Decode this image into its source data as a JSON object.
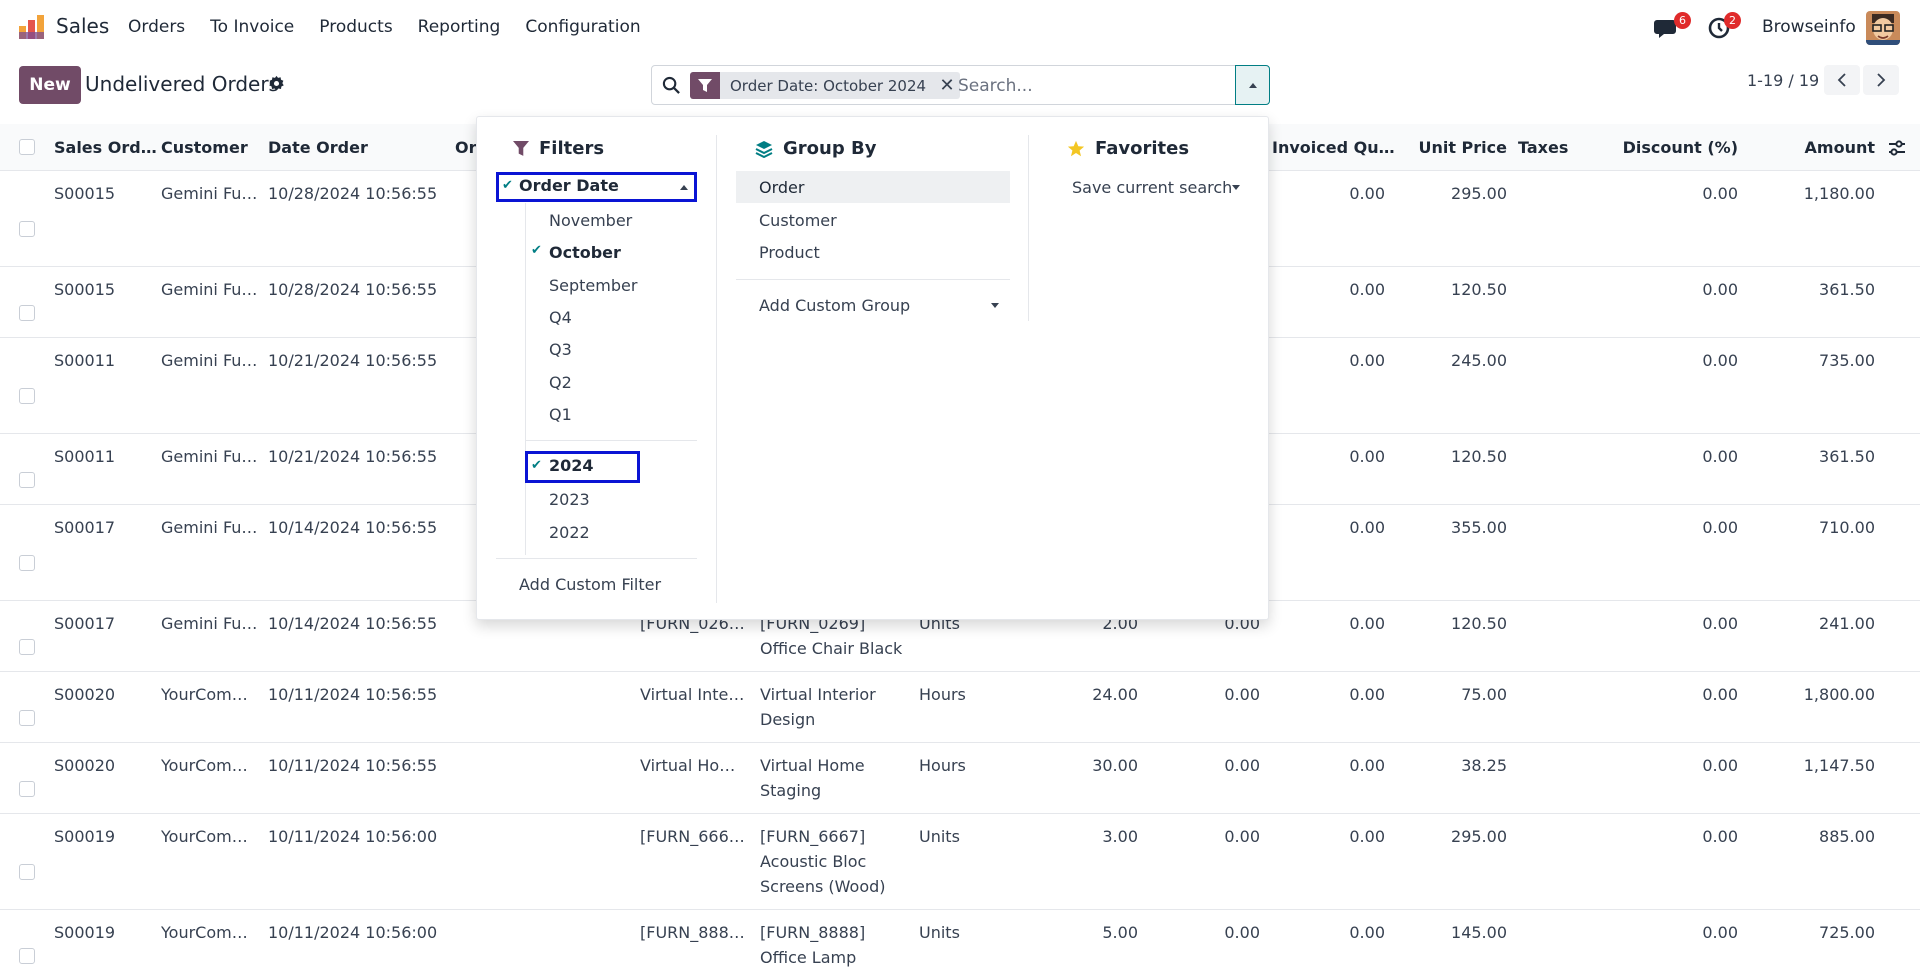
{
  "navbar": {
    "app_name": "Sales",
    "menu": [
      "Orders",
      "To Invoice",
      "Products",
      "Reporting",
      "Configuration"
    ],
    "messages_count": "6",
    "activities_count": "2",
    "company": "Browseinfo",
    "icons": [
      "sales-logo-icon",
      "chat-icon",
      "clock-icon",
      "avatar"
    ]
  },
  "control": {
    "new_label": "New",
    "title": "Undelivered Orders",
    "facet_label": "Order Date: October 2024",
    "search_placeholder": "Search...",
    "pager": "1-19 / 19"
  },
  "table": {
    "headers": {
      "order": "Sales Ord…",
      "customer": "Customer",
      "date": "Date Order",
      "or": "Or",
      "invoiced": "Invoiced Qu…",
      "unit_price": "Unit Price",
      "taxes": "Taxes",
      "discount": "Discount (%)",
      "amount": "Amount"
    },
    "rows": [
      {
        "order": "S00015",
        "customer": "Gemini Fu…",
        "date": "10/28/2024 10:56:55",
        "product": "",
        "desc": "",
        "uom": "",
        "qty": "",
        "delivered": "",
        "invoiced": "0.00",
        "price": "295.00",
        "discount": "0.00",
        "amount": "1,180.00"
      },
      {
        "order": "S00015",
        "customer": "Gemini Fu…",
        "date": "10/28/2024 10:56:55",
        "product": "",
        "desc": "",
        "uom": "",
        "qty": "",
        "delivered": "",
        "invoiced": "0.00",
        "price": "120.50",
        "discount": "0.00",
        "amount": "361.50"
      },
      {
        "order": "S00011",
        "customer": "Gemini Fu…",
        "date": "10/21/2024 10:56:55",
        "product": "",
        "desc": "",
        "uom": "",
        "qty": "",
        "delivered": "",
        "invoiced": "0.00",
        "price": "245.00",
        "discount": "0.00",
        "amount": "735.00"
      },
      {
        "order": "S00011",
        "customer": "Gemini Fu…",
        "date": "10/21/2024 10:56:55",
        "product": "",
        "desc": "",
        "uom": "",
        "qty": "",
        "delivered": "",
        "invoiced": "0.00",
        "price": "120.50",
        "discount": "0.00",
        "amount": "361.50"
      },
      {
        "order": "S00017",
        "customer": "Gemini Fu…",
        "date": "10/14/2024 10:56:55",
        "product": "",
        "desc": "",
        "uom": "",
        "qty": "",
        "delivered": "",
        "invoiced": "0.00",
        "price": "355.00",
        "discount": "0.00",
        "amount": "710.00"
      },
      {
        "order": "S00017",
        "customer": "Gemini Fu…",
        "date": "10/14/2024 10:56:55",
        "product": "[FURN_026…",
        "desc": "[FURN_0269] Office Chair Black",
        "uom": "Units",
        "qty": "2.00",
        "delivered": "0.00",
        "invoiced": "0.00",
        "price": "120.50",
        "discount": "0.00",
        "amount": "241.00"
      },
      {
        "order": "S00020",
        "customer": "YourCom…",
        "date": "10/11/2024 10:56:55",
        "product": "Virtual Inte…",
        "desc": "Virtual Interior Design",
        "uom": "Hours",
        "qty": "24.00",
        "delivered": "0.00",
        "invoiced": "0.00",
        "price": "75.00",
        "discount": "0.00",
        "amount": "1,800.00"
      },
      {
        "order": "S00020",
        "customer": "YourCom…",
        "date": "10/11/2024 10:56:55",
        "product": "Virtual Ho…",
        "desc": "Virtual Home Staging",
        "uom": "Hours",
        "qty": "30.00",
        "delivered": "0.00",
        "invoiced": "0.00",
        "price": "38.25",
        "discount": "0.00",
        "amount": "1,147.50"
      },
      {
        "order": "S00019",
        "customer": "YourCom…",
        "date": "10/11/2024 10:56:00",
        "product": "[FURN_666…",
        "desc": "[FURN_6667] Acoustic Bloc Screens (Wood)",
        "uom": "Units",
        "qty": "3.00",
        "delivered": "0.00",
        "invoiced": "0.00",
        "price": "295.00",
        "discount": "0.00",
        "amount": "885.00"
      },
      {
        "order": "S00019",
        "customer": "YourCom…",
        "date": "10/11/2024 10:56:00",
        "product": "[FURN_888…",
        "desc": "[FURN_8888] Office Lamp",
        "uom": "Units",
        "qty": "5.00",
        "delivered": "0.00",
        "invoiced": "0.00",
        "price": "145.00",
        "discount": "0.00",
        "amount": "725.00"
      }
    ]
  },
  "dropdown": {
    "filters_title": "Filters",
    "order_date": "Order Date",
    "months": [
      "November",
      "October",
      "September"
    ],
    "quarters": [
      "Q4",
      "Q3",
      "Q2",
      "Q1"
    ],
    "years": [
      "2024",
      "2023",
      "2022"
    ],
    "add_custom_filter": "Add Custom Filter",
    "groupby_title": "Group By",
    "groupby": [
      "Order",
      "Customer",
      "Product"
    ],
    "add_custom_group": "Add Custom Group",
    "favorites_title": "Favorites",
    "save_current_search": "Save current search"
  }
}
